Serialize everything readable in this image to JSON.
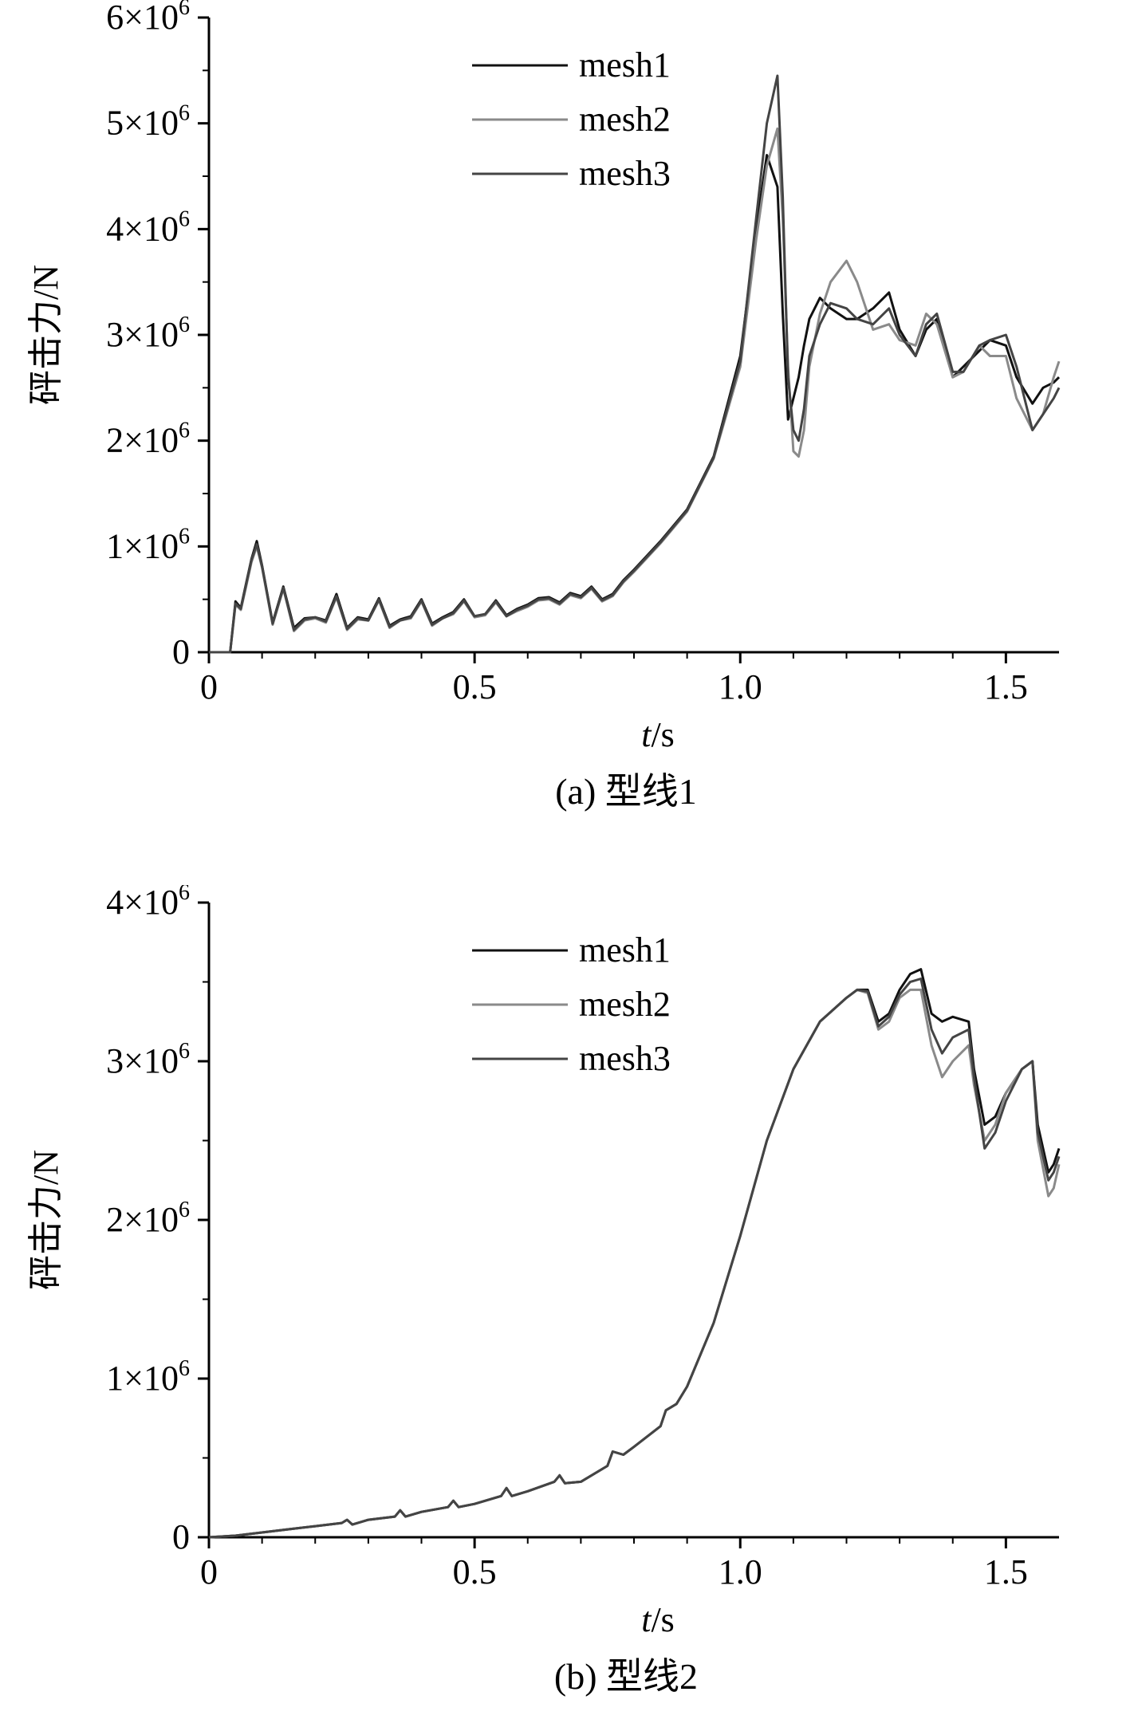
{
  "chart_data": [
    {
      "type": "line",
      "caption": "(a) 型线1",
      "xlabel": {
        "main": "t",
        "unit": "/s"
      },
      "ylabel": "砰击力/N",
      "xlim": [
        0,
        1.6
      ],
      "ylim": [
        0,
        6000000
      ],
      "xticks": [
        "0",
        "0.5",
        "1.0",
        "1.5"
      ],
      "xtick_values": [
        0,
        0.5,
        1.0,
        1.5
      ],
      "yticks": [
        {
          "value": 0,
          "base": "0",
          "exp": ""
        },
        {
          "value": 1000000,
          "base": "1×10",
          "exp": "6"
        },
        {
          "value": 2000000,
          "base": "2×10",
          "exp": "6"
        },
        {
          "value": 3000000,
          "base": "3×10",
          "exp": "6"
        },
        {
          "value": 4000000,
          "base": "4×10",
          "exp": "6"
        },
        {
          "value": 5000000,
          "base": "5×10",
          "exp": "6"
        },
        {
          "value": 6000000,
          "base": "6×10",
          "exp": "6"
        }
      ],
      "legend_position": "top-center",
      "series": [
        {
          "name": "mesh1",
          "color": "#111111",
          "x": [
            0,
            0.04,
            0.05,
            0.06,
            0.07,
            0.08,
            0.09,
            0.1,
            0.12,
            0.14,
            0.16,
            0.18,
            0.2,
            0.22,
            0.24,
            0.26,
            0.28,
            0.3,
            0.32,
            0.34,
            0.36,
            0.38,
            0.4,
            0.42,
            0.44,
            0.46,
            0.48,
            0.5,
            0.52,
            0.54,
            0.56,
            0.58,
            0.6,
            0.62,
            0.64,
            0.66,
            0.68,
            0.7,
            0.72,
            0.74,
            0.76,
            0.78,
            0.8,
            0.85,
            0.9,
            0.95,
            1.0,
            1.03,
            1.05,
            1.07,
            1.08,
            1.09,
            1.1,
            1.11,
            1.12,
            1.13,
            1.15,
            1.17,
            1.2,
            1.22,
            1.25,
            1.28,
            1.3,
            1.33,
            1.35,
            1.37,
            1.4,
            1.42,
            1.45,
            1.47,
            1.5,
            1.52,
            1.55,
            1.57,
            1.59,
            1.6
          ],
          "y": [
            0,
            0,
            480000,
            420000,
            650000,
            880000,
            1050000,
            820000,
            280000,
            620000,
            230000,
            320000,
            330000,
            300000,
            550000,
            230000,
            330000,
            310000,
            510000,
            250000,
            310000,
            340000,
            500000,
            270000,
            330000,
            380000,
            500000,
            340000,
            360000,
            490000,
            350000,
            410000,
            450000,
            510000,
            520000,
            470000,
            560000,
            530000,
            620000,
            500000,
            550000,
            680000,
            780000,
            1050000,
            1350000,
            1850000,
            2800000,
            4000000,
            4700000,
            4400000,
            3200000,
            2200000,
            2400000,
            2600000,
            2900000,
            3150000,
            3350000,
            3250000,
            3150000,
            3150000,
            3250000,
            3400000,
            3050000,
            2800000,
            3050000,
            3150000,
            2600000,
            2700000,
            2850000,
            2950000,
            2900000,
            2600000,
            2350000,
            2500000,
            2550000,
            2600000
          ]
        },
        {
          "name": "mesh2",
          "color": "#8a8a8a",
          "x": [
            0,
            0.04,
            0.05,
            0.06,
            0.07,
            0.08,
            0.09,
            0.1,
            0.12,
            0.14,
            0.16,
            0.18,
            0.2,
            0.22,
            0.24,
            0.26,
            0.28,
            0.3,
            0.32,
            0.34,
            0.36,
            0.38,
            0.4,
            0.42,
            0.44,
            0.46,
            0.48,
            0.5,
            0.52,
            0.54,
            0.56,
            0.58,
            0.6,
            0.62,
            0.64,
            0.66,
            0.68,
            0.7,
            0.72,
            0.74,
            0.76,
            0.78,
            0.8,
            0.85,
            0.9,
            0.95,
            1.0,
            1.03,
            1.05,
            1.07,
            1.08,
            1.09,
            1.1,
            1.11,
            1.12,
            1.13,
            1.15,
            1.17,
            1.2,
            1.22,
            1.25,
            1.28,
            1.3,
            1.33,
            1.35,
            1.37,
            1.4,
            1.42,
            1.45,
            1.47,
            1.5,
            1.52,
            1.55,
            1.57,
            1.59,
            1.6
          ],
          "y": [
            0,
            0,
            450000,
            400000,
            620000,
            850000,
            1000000,
            800000,
            260000,
            600000,
            200000,
            300000,
            320000,
            280000,
            520000,
            210000,
            310000,
            300000,
            490000,
            230000,
            300000,
            320000,
            480000,
            250000,
            320000,
            360000,
            480000,
            330000,
            350000,
            470000,
            340000,
            390000,
            430000,
            490000,
            500000,
            450000,
            540000,
            510000,
            600000,
            480000,
            530000,
            660000,
            760000,
            1030000,
            1330000,
            1830000,
            2700000,
            3900000,
            4600000,
            4950000,
            4100000,
            2700000,
            1900000,
            1850000,
            2100000,
            2700000,
            3200000,
            3500000,
            3700000,
            3500000,
            3050000,
            3100000,
            2950000,
            2900000,
            3200000,
            3100000,
            2600000,
            2650000,
            2900000,
            2800000,
            2800000,
            2400000,
            2100000,
            2250000,
            2600000,
            2750000
          ]
        },
        {
          "name": "mesh3",
          "color": "#444444",
          "x": [
            0,
            0.04,
            0.05,
            0.06,
            0.07,
            0.08,
            0.09,
            0.1,
            0.12,
            0.14,
            0.16,
            0.18,
            0.2,
            0.22,
            0.24,
            0.26,
            0.28,
            0.3,
            0.32,
            0.34,
            0.36,
            0.38,
            0.4,
            0.42,
            0.44,
            0.46,
            0.48,
            0.5,
            0.52,
            0.54,
            0.56,
            0.58,
            0.6,
            0.62,
            0.64,
            0.66,
            0.68,
            0.7,
            0.72,
            0.74,
            0.76,
            0.78,
            0.8,
            0.85,
            0.9,
            0.95,
            1.0,
            1.03,
            1.05,
            1.07,
            1.08,
            1.09,
            1.1,
            1.11,
            1.12,
            1.13,
            1.15,
            1.17,
            1.2,
            1.22,
            1.25,
            1.28,
            1.3,
            1.33,
            1.35,
            1.37,
            1.4,
            1.42,
            1.45,
            1.47,
            1.5,
            1.52,
            1.55,
            1.57,
            1.59,
            1.6
          ],
          "y": [
            0,
            0,
            460000,
            410000,
            640000,
            870000,
            1020000,
            810000,
            270000,
            610000,
            210000,
            310000,
            330000,
            290000,
            530000,
            220000,
            320000,
            300000,
            500000,
            240000,
            300000,
            330000,
            490000,
            260000,
            320000,
            370000,
            490000,
            340000,
            360000,
            480000,
            340000,
            400000,
            440000,
            500000,
            510000,
            460000,
            550000,
            520000,
            610000,
            490000,
            540000,
            670000,
            770000,
            1040000,
            1340000,
            1840000,
            2750000,
            4100000,
            5000000,
            5450000,
            4300000,
            2600000,
            2100000,
            2000000,
            2300000,
            2800000,
            3100000,
            3300000,
            3250000,
            3150000,
            3100000,
            3250000,
            3000000,
            2800000,
            3100000,
            3200000,
            2650000,
            2650000,
            2900000,
            2950000,
            3000000,
            2700000,
            2100000,
            2250000,
            2400000,
            2500000
          ]
        }
      ]
    },
    {
      "type": "line",
      "caption": "(b) 型线2",
      "xlabel": {
        "main": "t",
        "unit": "/s"
      },
      "ylabel": "砰击力/N",
      "xlim": [
        0,
        1.6
      ],
      "ylim": [
        0,
        4000000
      ],
      "xticks": [
        "0",
        "0.5",
        "1.0",
        "1.5"
      ],
      "xtick_values": [
        0,
        0.5,
        1.0,
        1.5
      ],
      "yticks": [
        {
          "value": 0,
          "base": "0",
          "exp": ""
        },
        {
          "value": 1000000,
          "base": "1×10",
          "exp": "6"
        },
        {
          "value": 2000000,
          "base": "2×10",
          "exp": "6"
        },
        {
          "value": 3000000,
          "base": "3×10",
          "exp": "6"
        },
        {
          "value": 4000000,
          "base": "4×10",
          "exp": "6"
        }
      ],
      "legend_position": "top-center",
      "series": [
        {
          "name": "mesh1",
          "color": "#111111",
          "x": [
            0,
            0.05,
            0.1,
            0.15,
            0.2,
            0.25,
            0.26,
            0.27,
            0.3,
            0.35,
            0.36,
            0.37,
            0.4,
            0.45,
            0.46,
            0.47,
            0.5,
            0.55,
            0.56,
            0.57,
            0.6,
            0.65,
            0.66,
            0.67,
            0.7,
            0.75,
            0.76,
            0.78,
            0.8,
            0.85,
            0.86,
            0.88,
            0.9,
            0.95,
            1.0,
            1.05,
            1.1,
            1.15,
            1.2,
            1.22,
            1.24,
            1.26,
            1.28,
            1.3,
            1.32,
            1.34,
            1.36,
            1.38,
            1.4,
            1.43,
            1.44,
            1.46,
            1.48,
            1.5,
            1.53,
            1.55,
            1.56,
            1.58,
            1.59,
            1.6
          ],
          "y": [
            0,
            10000,
            30000,
            50000,
            70000,
            90000,
            110000,
            80000,
            110000,
            130000,
            170000,
            130000,
            160000,
            190000,
            230000,
            190000,
            210000,
            260000,
            310000,
            260000,
            290000,
            350000,
            390000,
            340000,
            350000,
            450000,
            540000,
            520000,
            570000,
            700000,
            800000,
            840000,
            950000,
            1350000,
            1900000,
            2500000,
            2950000,
            3250000,
            3400000,
            3450000,
            3450000,
            3250000,
            3300000,
            3450000,
            3550000,
            3580000,
            3300000,
            3250000,
            3280000,
            3250000,
            2950000,
            2600000,
            2650000,
            2800000,
            2950000,
            3000000,
            2600000,
            2300000,
            2350000,
            2450000
          ]
        },
        {
          "name": "mesh2",
          "color": "#8a8a8a",
          "x": [
            0,
            0.05,
            0.1,
            0.15,
            0.2,
            0.25,
            0.26,
            0.27,
            0.3,
            0.35,
            0.36,
            0.37,
            0.4,
            0.45,
            0.46,
            0.47,
            0.5,
            0.55,
            0.56,
            0.57,
            0.6,
            0.65,
            0.66,
            0.67,
            0.7,
            0.75,
            0.76,
            0.78,
            0.8,
            0.85,
            0.86,
            0.88,
            0.9,
            0.95,
            1.0,
            1.05,
            1.1,
            1.15,
            1.2,
            1.22,
            1.24,
            1.26,
            1.28,
            1.3,
            1.32,
            1.34,
            1.36,
            1.38,
            1.4,
            1.43,
            1.44,
            1.46,
            1.48,
            1.5,
            1.53,
            1.55,
            1.56,
            1.58,
            1.59,
            1.6
          ],
          "y": [
            0,
            10000,
            30000,
            50000,
            70000,
            90000,
            110000,
            80000,
            110000,
            130000,
            170000,
            130000,
            160000,
            190000,
            230000,
            190000,
            210000,
            260000,
            310000,
            260000,
            290000,
            350000,
            390000,
            340000,
            350000,
            450000,
            540000,
            520000,
            570000,
            700000,
            800000,
            840000,
            950000,
            1350000,
            1900000,
            2500000,
            2950000,
            3250000,
            3400000,
            3450000,
            3430000,
            3200000,
            3250000,
            3400000,
            3450000,
            3450000,
            3100000,
            2900000,
            3000000,
            3100000,
            2850000,
            2500000,
            2600000,
            2800000,
            2950000,
            3000000,
            2500000,
            2150000,
            2200000,
            2350000
          ]
        },
        {
          "name": "mesh3",
          "color": "#444444",
          "x": [
            0,
            0.05,
            0.1,
            0.15,
            0.2,
            0.25,
            0.26,
            0.27,
            0.3,
            0.35,
            0.36,
            0.37,
            0.4,
            0.45,
            0.46,
            0.47,
            0.5,
            0.55,
            0.56,
            0.57,
            0.6,
            0.65,
            0.66,
            0.67,
            0.7,
            0.75,
            0.76,
            0.78,
            0.8,
            0.85,
            0.86,
            0.88,
            0.9,
            0.95,
            1.0,
            1.05,
            1.1,
            1.15,
            1.2,
            1.22,
            1.24,
            1.26,
            1.28,
            1.3,
            1.32,
            1.34,
            1.36,
            1.38,
            1.4,
            1.43,
            1.44,
            1.46,
            1.48,
            1.5,
            1.53,
            1.55,
            1.56,
            1.58,
            1.59,
            1.6
          ],
          "y": [
            0,
            10000,
            30000,
            50000,
            70000,
            90000,
            110000,
            80000,
            110000,
            130000,
            170000,
            130000,
            160000,
            190000,
            230000,
            190000,
            210000,
            260000,
            310000,
            260000,
            290000,
            350000,
            390000,
            340000,
            350000,
            450000,
            540000,
            520000,
            570000,
            700000,
            800000,
            840000,
            950000,
            1350000,
            1900000,
            2500000,
            2950000,
            3250000,
            3400000,
            3450000,
            3440000,
            3220000,
            3280000,
            3420000,
            3500000,
            3520000,
            3200000,
            3050000,
            3150000,
            3200000,
            2900000,
            2450000,
            2550000,
            2750000,
            2950000,
            3000000,
            2550000,
            2250000,
            2300000,
            2400000
          ]
        }
      ]
    }
  ]
}
